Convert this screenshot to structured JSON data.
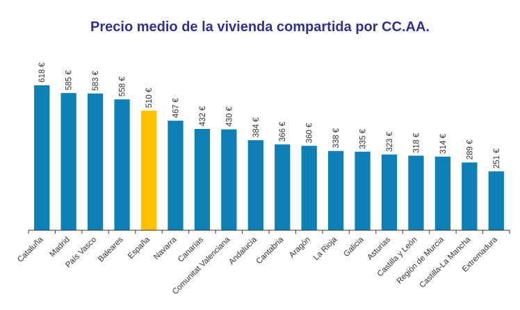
{
  "chart_data": {
    "type": "bar",
    "title": "Precio medio de la vivienda compartida por CC.AA.",
    "categories": [
      "Cataluña",
      "Madrid",
      "País Vasco",
      "Baleares",
      "España",
      "Navarra",
      "Canarias",
      "Comunitat Valenciana",
      "Andalucía",
      "Cantabria",
      "Aragón",
      "La Rioja",
      "Galicia",
      "Asturias",
      "Castilla y León",
      "Región de Murcia",
      "Castilla-La Mancha",
      "Extremadura"
    ],
    "values": [
      618,
      585,
      583,
      558,
      510,
      467,
      432,
      430,
      384,
      366,
      360,
      338,
      335,
      323,
      318,
      314,
      289,
      251
    ],
    "value_labels": [
      "618 €",
      "585 €",
      "583 €",
      "558 €",
      "510 €",
      "467 €",
      "432 €",
      "430 €",
      "384 €",
      "366 €",
      "360 €",
      "338 €",
      "335 €",
      "323 €",
      "318 €",
      "314 €",
      "289 €",
      "251 €"
    ],
    "highlight_category": "España",
    "colors": {
      "bar": "#0f7fb7",
      "highlight": "#ffc000",
      "title": "#2e3192",
      "axis": "#333333"
    },
    "xlabel": "",
    "ylabel": "",
    "ylim": [
      0,
      618
    ],
    "grid": false,
    "legend": "none"
  }
}
